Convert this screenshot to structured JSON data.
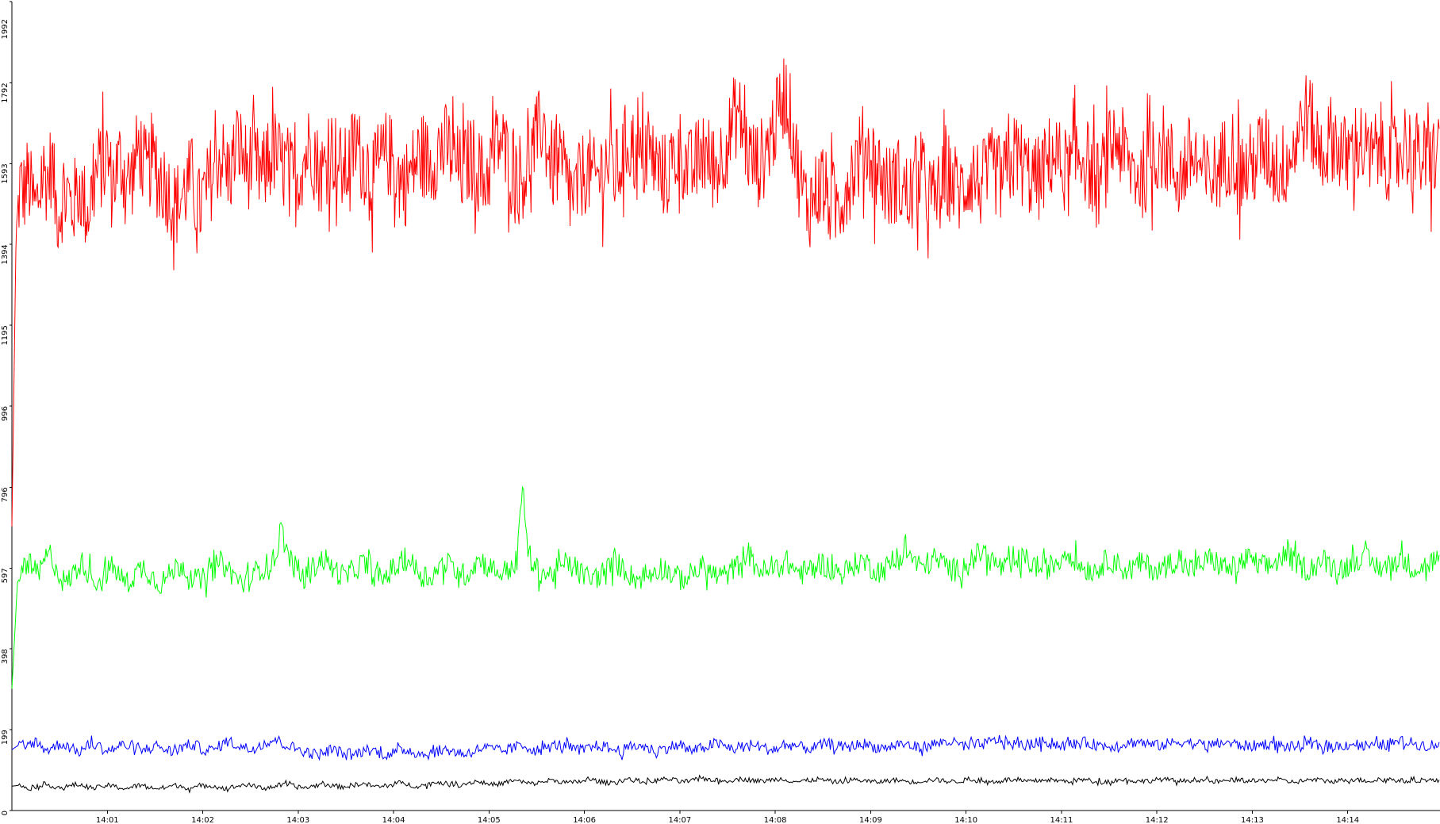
{
  "chart_data": {
    "type": "line",
    "title": "",
    "xlabel": "",
    "ylabel": "",
    "ylim": [
      0,
      1992
    ],
    "xlim": [
      "14:00:00",
      "14:14:58"
    ],
    "grid": false,
    "legend": "none",
    "y_ticks": [
      "0",
      "199",
      "398",
      "597",
      "796",
      "996",
      "1195",
      "1394",
      "1593",
      "1792",
      "1992"
    ],
    "x_ticks": [
      "14:01",
      "14:02",
      "14:03",
      "14:04",
      "14:05",
      "14:06",
      "14:07",
      "14:08",
      "14:09",
      "14:10",
      "14:11",
      "14:12",
      "14:13",
      "14:14"
    ],
    "series": [
      {
        "color": "#ff0000",
        "values": [
          700,
          1380,
          1540,
          1520,
          1560,
          1510,
          1480,
          1530,
          1570,
          1550,
          1600,
          1490,
          1470,
          1530,
          1520,
          1480,
          1510,
          1540,
          1500,
          1470,
          1520,
          1560,
          1590,
          1580,
          1620,
          1540,
          1570,
          1600,
          1580,
          1550,
          1560,
          1600,
          1640,
          1590,
          1560,
          1610,
          1580,
          1540,
          1550,
          1530,
          1510,
          1490,
          1500,
          1520,
          1540,
          1560,
          1520,
          1480,
          1510,
          1530,
          1560,
          1590,
          1610,
          1600,
          1570,
          1580,
          1620,
          1640,
          1610,
          1580,
          1600,
          1590,
          1570,
          1560,
          1590,
          1610,
          1620,
          1600,
          1580,
          1590,
          1560,
          1540,
          1570,
          1600,
          1620,
          1650,
          1600,
          1580,
          1570,
          1600,
          1630,
          1620,
          1590,
          1570,
          1580,
          1610,
          1640,
          1620,
          1600,
          1590,
          1570,
          1560,
          1580,
          1600,
          1620,
          1610,
          1590,
          1560,
          1540,
          1550,
          1570,
          1590,
          1610,
          1620,
          1600,
          1590,
          1610,
          1630,
          1620,
          1640,
          1620,
          1600,
          1580,
          1570,
          1590,
          1610,
          1600,
          1580,
          1560,
          1560,
          1590,
          1620,
          1650,
          1640,
          1610,
          1600,
          1590,
          1570,
          1560,
          1580,
          1610,
          1640,
          1660,
          1700,
          1650,
          1600,
          1580,
          1590,
          1570,
          1550,
          1520,
          1510,
          1530,
          1560,
          1580,
          1570,
          1550,
          1560,
          1580,
          1600,
          1590,
          1570,
          1580,
          1600,
          1640,
          1660,
          1620,
          1600,
          1590,
          1610,
          1620,
          1600,
          1580,
          1570,
          1560,
          1580,
          1600,
          1630,
          1620,
          1590,
          1570,
          1580,
          1600,
          1620,
          1610,
          1600,
          1580,
          1590,
          1610,
          1640,
          1660,
          1700,
          1720,
          1690,
          1650,
          1610,
          1600,
          1590,
          1600,
          1620,
          1650,
          1680,
          1700,
          1750,
          1770,
          1720,
          1660,
          1590,
          1540,
          1500,
          1490,
          1510,
          1530,
          1540,
          1520,
          1500,
          1480,
          1490,
          1510,
          1530,
          1560,
          1580,
          1600,
          1620,
          1640,
          1620,
          1600,
          1580,
          1570,
          1550,
          1530,
          1540,
          1560,
          1540,
          1520,
          1510,
          1530,
          1550,
          1560,
          1540,
          1520,
          1500,
          1510,
          1530,
          1540,
          1560,
          1550,
          1530,
          1520,
          1540,
          1560,
          1570,
          1550,
          1540,
          1550,
          1560,
          1580,
          1570,
          1550,
          1560,
          1580,
          1600,
          1620,
          1600,
          1580,
          1570,
          1560,
          1550,
          1560,
          1580,
          1600,
          1620,
          1610,
          1590,
          1580,
          1570,
          1580,
          1600,
          1620,
          1610,
          1590,
          1560,
          1540,
          1550,
          1580,
          1610,
          1640,
          1660,
          1640,
          1610,
          1590,
          1580,
          1570,
          1560,
          1570,
          1590,
          1600,
          1620,
          1640,
          1630,
          1610,
          1590,
          1570,
          1560,
          1580,
          1600,
          1610,
          1600,
          1580,
          1560,
          1550,
          1560,
          1570,
          1590,
          1600,
          1620,
          1630,
          1610,
          1580,
          1570,
          1580,
          1590,
          1600,
          1620,
          1630,
          1620,
          1600,
          1590,
          1580,
          1590,
          1600,
          1620,
          1650,
          1680,
          1700,
          1720,
          1690,
          1650,
          1630,
          1620,
          1640,
          1660,
          1650,
          1630,
          1610,
          1600,
          1620,
          1640,
          1650,
          1630,
          1610,
          1600,
          1620,
          1640,
          1630,
          1610,
          1600,
          1610,
          1630,
          1650,
          1640,
          1620,
          1610,
          1620,
          1600,
          1590,
          1600,
          1620,
          1610
        ]
      },
      {
        "color": "#00ff00",
        "values": [
          300,
          560,
          600,
          610,
          590,
          580,
          620,
          630,
          600,
          570,
          560,
          580,
          600,
          610,
          590,
          570,
          560,
          580,
          600,
          590,
          570,
          560,
          575,
          590,
          600,
          585,
          570,
          560,
          570,
          585,
          600,
          605,
          590,
          575,
          565,
          570,
          585,
          600,
          610,
          600,
          585,
          570,
          560,
          565,
          580,
          595,
          600,
          610,
          620,
          700,
          640,
          610,
          590,
          575,
          580,
          600,
          615,
          620,
          600,
          590,
          580,
          575,
          590,
          600,
          610,
          595,
          580,
          570,
          575,
          590,
          600,
          610,
          620,
          605,
          590,
          580,
          575,
          585,
          600,
          610,
          600,
          590,
          580,
          585,
          600,
          620,
          610,
          600,
          590,
          585,
          590,
          600,
          615,
          800,
          640,
          600,
          590,
          585,
          580,
          590,
          600,
          610,
          600,
          590,
          580,
          575,
          570,
          580,
          590,
          600,
          610,
          600,
          590,
          575,
          570,
          575,
          580,
          590,
          600,
          595,
          585,
          575,
          570,
          575,
          585,
          595,
          600,
          590,
          580,
          575,
          580,
          590,
          600,
          620,
          640,
          610,
          595,
          590,
          585,
          595,
          605,
          615,
          600,
          590,
          585,
          590,
          600,
          610,
          605,
          595,
          590,
          585,
          590,
          600,
          610,
          615,
          605,
          595,
          590,
          595,
          605,
          615,
          625,
          640,
          620,
          605,
          600,
          610,
          620,
          615,
          605,
          595,
          590,
          600,
          610,
          620,
          630,
          640,
          620,
          610,
          600,
          595,
          600,
          610,
          620,
          615,
          605,
          600,
          595,
          600,
          610,
          620,
          640,
          630,
          610,
          600,
          595,
          590,
          600,
          610,
          620,
          610,
          600,
          590,
          595,
          605,
          610,
          600,
          595,
          590,
          600,
          610,
          615,
          605,
          600,
          595,
          600,
          610,
          620,
          615,
          605,
          600,
          595,
          600,
          610,
          620,
          615,
          605,
          600,
          600,
          610,
          620,
          630,
          620,
          610,
          600,
          595,
          600,
          610,
          615,
          605,
          600,
          598,
          600,
          610,
          620,
          625,
          615,
          605,
          600,
          600,
          605,
          615,
          620,
          610,
          600,
          598,
          600,
          605,
          615,
          620
        ]
      },
      {
        "color": "#0000ff",
        "values": [
          150,
          160,
          150,
          165,
          170,
          155,
          150,
          158,
          165,
          160,
          150,
          145,
          155,
          165,
          160,
          150,
          148,
          155,
          162,
          158,
          150,
          145,
          152,
          160,
          158,
          150,
          145,
          150,
          158,
          162,
          160,
          152,
          148,
          150,
          160,
          170,
          168,
          160,
          155,
          150,
          158,
          165,
          170,
          175,
          168,
          160,
          155,
          150,
          145,
          140,
          138,
          142,
          150,
          148,
          140,
          135,
          138,
          145,
          150,
          148,
          142,
          138,
          140,
          145,
          150,
          148,
          142,
          138,
          140,
          144,
          148,
          150,
          146,
          142,
          140,
          145,
          150,
          155,
          152,
          148,
          145,
          150,
          155,
          160,
          158,
          150,
          148,
          152,
          158,
          162,
          160,
          155,
          150,
          148,
          152,
          158,
          160,
          156,
          150,
          148,
          150,
          156,
          160,
          158,
          152,
          148,
          150,
          155,
          160,
          158,
          152,
          148,
          150,
          155,
          162,
          165,
          160,
          155,
          152,
          155,
          160,
          162,
          158,
          152,
          150,
          152,
          158,
          162,
          160,
          155,
          152,
          155,
          160,
          165,
          162,
          158,
          155,
          158,
          162,
          165,
          160,
          156,
          154,
          156,
          160,
          165,
          162,
          158,
          155,
          158,
          162,
          165,
          168,
          170,
          165,
          160,
          158,
          160,
          162,
          165,
          170,
          175,
          170,
          165,
          162,
          160,
          162,
          165,
          168,
          170,
          165,
          162,
          160,
          162,
          165,
          168,
          165,
          162,
          160,
          158,
          160,
          162,
          165,
          168,
          170,
          165,
          162,
          160,
          162,
          165,
          168,
          170,
          168,
          165,
          162,
          160,
          162,
          165,
          168,
          165,
          162,
          160,
          158,
          160,
          162,
          165,
          162,
          160,
          158,
          156,
          158,
          160,
          162,
          160,
          158,
          156,
          158,
          160,
          162,
          165,
          162,
          160,
          158,
          160,
          162,
          165,
          168,
          170,
          168,
          165,
          162,
          160,
          162,
          165
        ]
      },
      {
        "color": "#000000",
        "values": [
          60,
          62,
          58,
          55,
          60,
          65,
          62,
          58,
          56,
          60,
          64,
          62,
          58,
          55,
          58,
          62,
          60,
          56,
          54,
          58,
          62,
          60,
          56,
          54,
          56,
          60,
          62,
          58,
          55,
          57,
          60,
          62,
          60,
          56,
          55,
          58,
          62,
          64,
          60,
          57,
          56,
          58,
          62,
          64,
          62,
          58,
          56,
          58,
          62,
          65,
          63,
          60,
          58,
          60,
          64,
          66,
          64,
          60,
          58,
          60,
          64,
          68,
          66,
          62,
          60,
          62,
          66,
          70,
          68,
          64,
          62,
          64,
          68,
          72,
          70,
          66,
          64,
          66,
          70,
          74,
          72,
          68,
          66,
          68,
          72,
          75,
          73,
          70,
          68,
          70,
          73,
          76,
          74,
          70,
          68,
          70,
          74,
          77,
          75,
          72,
          70,
          72,
          75,
          78,
          76,
          73,
          71,
          73,
          76,
          79,
          77,
          74,
          72,
          74,
          76,
          78,
          76,
          74,
          72,
          74,
          76,
          78,
          76,
          73,
          71,
          73,
          75,
          77,
          75,
          72,
          70,
          72,
          74,
          76,
          74,
          72,
          70,
          71,
          73,
          75,
          74,
          72,
          70,
          72,
          74,
          76,
          75,
          73,
          71,
          72,
          74,
          76,
          74,
          72,
          70,
          72,
          74,
          76,
          75,
          73,
          71,
          72,
          74,
          76,
          75,
          73,
          72,
          73,
          75,
          76,
          74,
          72,
          70,
          72,
          74,
          76,
          75,
          73,
          72,
          73,
          75,
          77,
          76,
          74,
          72,
          73,
          75,
          76,
          74,
          72,
          71,
          72,
          74,
          76,
          75,
          73,
          72,
          73,
          75,
          76,
          74,
          72,
          70,
          72,
          74,
          76,
          75,
          73,
          72,
          73,
          75,
          77,
          76,
          74,
          73,
          74,
          76,
          77,
          75,
          73,
          72,
          73,
          75,
          76,
          74,
          72
        ]
      }
    ]
  }
}
